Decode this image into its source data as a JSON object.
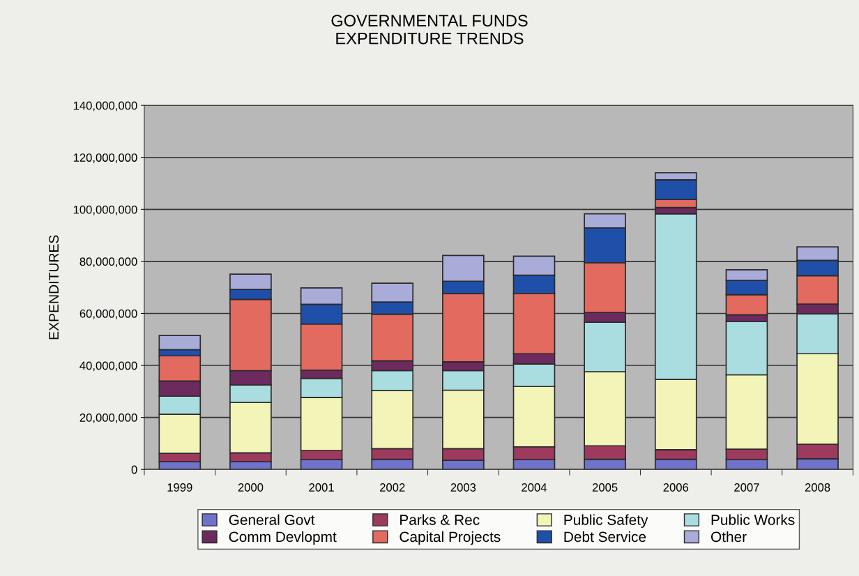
{
  "chart_data": {
    "type": "bar",
    "title": "GOVERNMENTAL FUNDS\nEXPENDITURE TRENDS",
    "ylabel": "EXPENDITURES",
    "categories": [
      "1999",
      "2000",
      "2001",
      "2002",
      "2003",
      "2004",
      "2005",
      "2006",
      "2007",
      "2008"
    ],
    "stacked": true,
    "series": [
      {
        "name": "General Govt",
        "color": "#6f73c9",
        "values": [
          3000000,
          3000000,
          3800000,
          3900000,
          3500000,
          3800000,
          3900000,
          3900000,
          3800000,
          4100000
        ]
      },
      {
        "name": "Parks & Rec",
        "color": "#9e3a5e",
        "values": [
          3200000,
          3400000,
          3500000,
          4100000,
          4500000,
          4900000,
          5200000,
          3700000,
          4000000,
          5600000
        ]
      },
      {
        "name": "Public Safety",
        "color": "#f2f4b8",
        "values": [
          15000000,
          19400000,
          20400000,
          22300000,
          22500000,
          23200000,
          28500000,
          27000000,
          28600000,
          34800000
        ]
      },
      {
        "name": "Public Works",
        "color": "#a9dde0",
        "values": [
          7000000,
          6700000,
          7300000,
          7700000,
          7500000,
          8700000,
          19000000,
          63700000,
          20500000,
          15300000
        ]
      },
      {
        "name": "Comm Devlopmt",
        "color": "#6d2a5e",
        "values": [
          5800000,
          5500000,
          3200000,
          3800000,
          3400000,
          3900000,
          3800000,
          2400000,
          2600000,
          3800000
        ]
      },
      {
        "name": "Capital Projects",
        "color": "#e26a5e",
        "values": [
          9700000,
          27400000,
          17700000,
          17900000,
          26200000,
          23200000,
          19100000,
          3100000,
          7700000,
          10900000
        ]
      },
      {
        "name": "Debt Service",
        "color": "#1f4fa8",
        "values": [
          2400000,
          3900000,
          7600000,
          4700000,
          4800000,
          7000000,
          13400000,
          7600000,
          5500000,
          5900000
        ]
      },
      {
        "name": "Other",
        "color": "#a9acd9",
        "values": [
          5400000,
          5800000,
          6300000,
          7200000,
          9900000,
          7300000,
          5400000,
          2700000,
          4100000,
          5200000
        ]
      }
    ],
    "ylim": [
      0,
      140000000
    ],
    "yticks": [
      {
        "value": 0,
        "label": "0"
      },
      {
        "value": 20000000,
        "label": "20,000,000"
      },
      {
        "value": 40000000,
        "label": "40,000,000"
      },
      {
        "value": 60000000,
        "label": "60,000,000"
      },
      {
        "value": 80000000,
        "label": "80,000,000"
      },
      {
        "value": 100000000,
        "label": "100,000,000"
      },
      {
        "value": 120000000,
        "label": "120,000,000"
      },
      {
        "value": 140000000,
        "label": "140,000,000"
      }
    ],
    "grid": "y",
    "legend": "bottom"
  }
}
